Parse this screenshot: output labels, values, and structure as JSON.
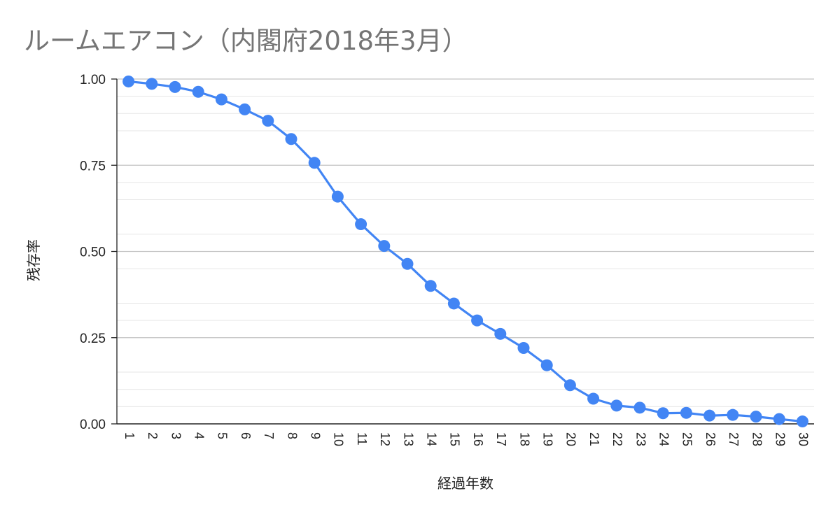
{
  "chart_data": {
    "type": "line",
    "title": "ルームエアコン（内閣府2018年3月）",
    "xlabel": "経過年数",
    "ylabel": "残存率",
    "x": [
      1,
      2,
      3,
      4,
      5,
      6,
      7,
      8,
      9,
      10,
      11,
      12,
      13,
      14,
      15,
      16,
      17,
      18,
      19,
      20,
      21,
      22,
      23,
      24,
      25,
      26,
      27,
      28,
      29,
      30
    ],
    "series": [
      {
        "values": [
          0.993,
          0.986,
          0.977,
          0.963,
          0.941,
          0.912,
          0.879,
          0.826,
          0.757,
          0.659,
          0.579,
          0.516,
          0.464,
          0.4,
          0.349,
          0.3,
          0.261,
          0.22,
          0.17,
          0.112,
          0.073,
          0.053,
          0.047,
          0.031,
          0.032,
          0.024,
          0.026,
          0.021,
          0.014,
          0.007
        ],
        "color": "#4285f4"
      }
    ],
    "yticks": [
      "0.00",
      "0.25",
      "0.50",
      "0.75",
      "1.00"
    ],
    "ylim": [
      0,
      1
    ],
    "grid": true,
    "legend": "none"
  }
}
